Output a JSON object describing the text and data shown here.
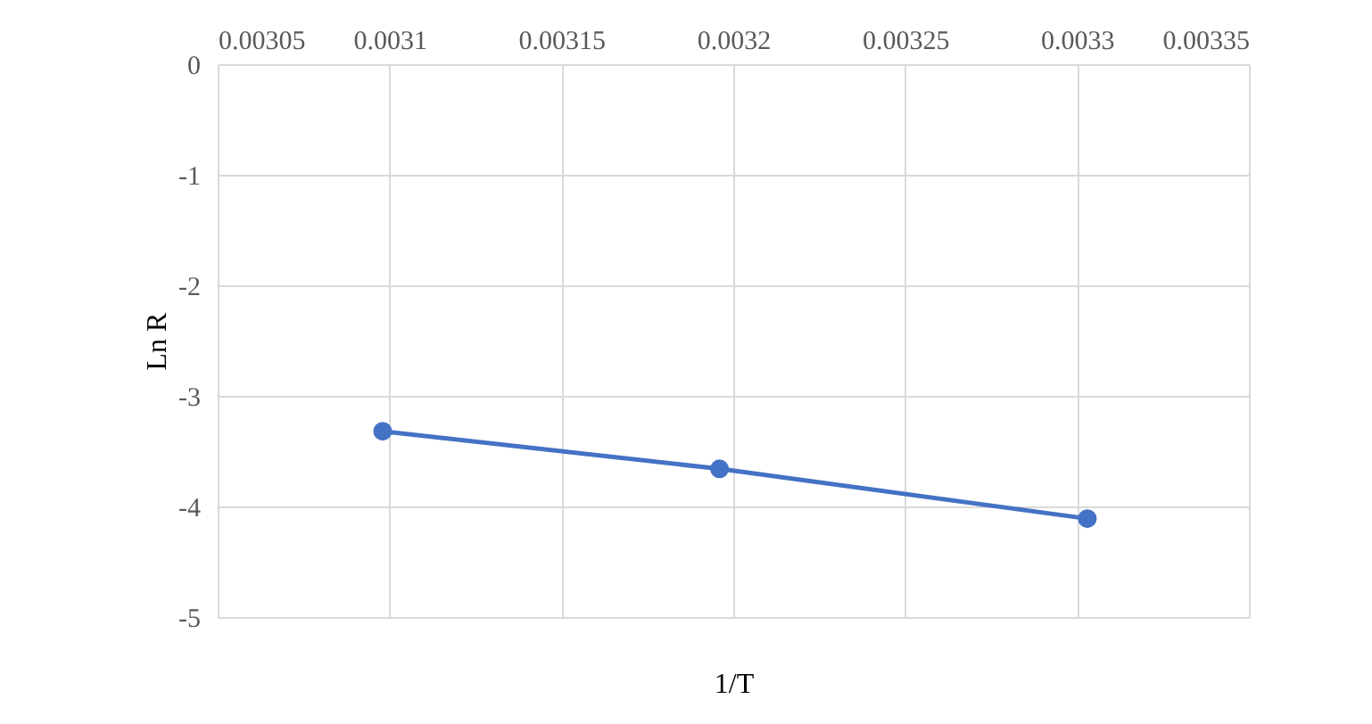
{
  "chart_data": {
    "type": "line",
    "xlabel": "1/T",
    "ylabel": "Ln R",
    "x": [
      0.003098,
      0.003196,
      0.003303
    ],
    "series": [
      {
        "color": "#4472c4",
        "values": [
          -3.32,
          -3.66,
          -4.11
        ]
      }
    ],
    "xlim": [
      0.00305,
      0.00335
    ],
    "xticks": [
      0.00305,
      0.0031,
      0.00315,
      0.0032,
      0.00325,
      0.0033,
      0.00335
    ],
    "ylim": [
      -5,
      0
    ],
    "yticks": [
      0,
      -1,
      -2,
      -3,
      -4,
      -5
    ],
    "grid": true,
    "marker": "circle",
    "line_style": "solid"
  }
}
